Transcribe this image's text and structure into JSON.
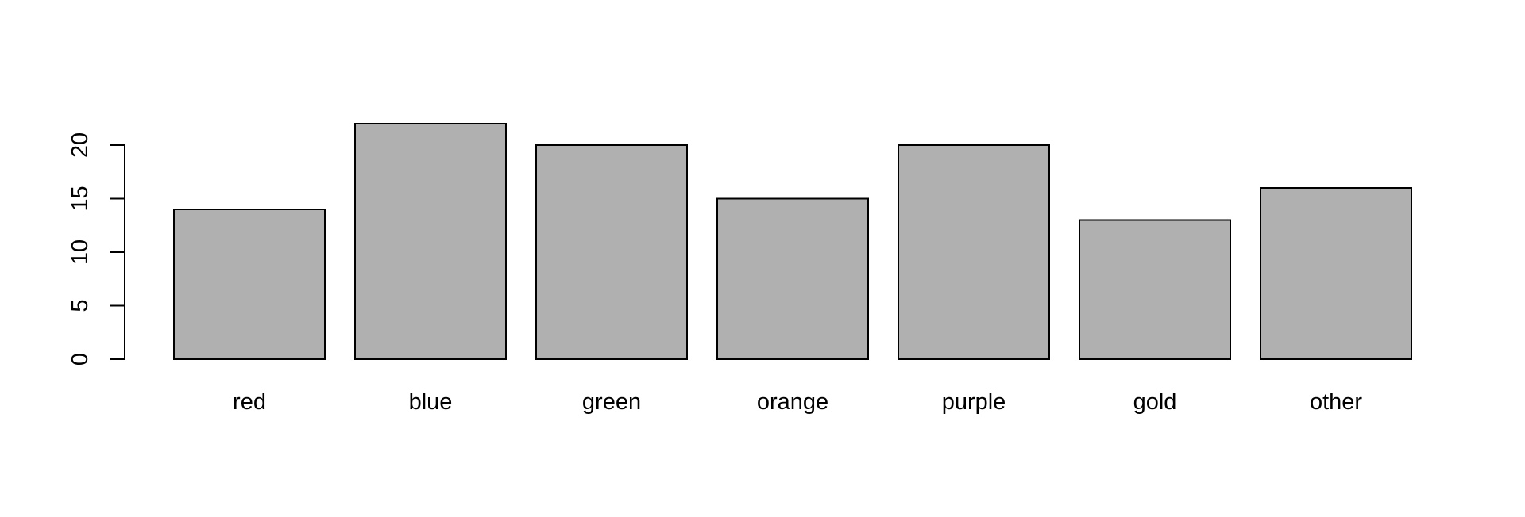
{
  "chart_data": {
    "type": "bar",
    "title": "",
    "xlabel": "",
    "ylabel": "",
    "categories": [
      "red",
      "blue",
      "green",
      "orange",
      "purple",
      "gold",
      "other"
    ],
    "values": [
      14,
      22,
      20,
      15,
      20,
      13,
      16
    ],
    "ylim": [
      0,
      22
    ],
    "yticks": [
      0,
      5,
      10,
      15,
      20
    ],
    "ytick_labels": [
      "0",
      "5",
      "10",
      "15",
      "20"
    ],
    "grid": false,
    "legend": "none",
    "colors": {
      "bar_fill": "#b0b0b0",
      "bar_stroke": "#000000",
      "background": "#ffffff"
    }
  }
}
